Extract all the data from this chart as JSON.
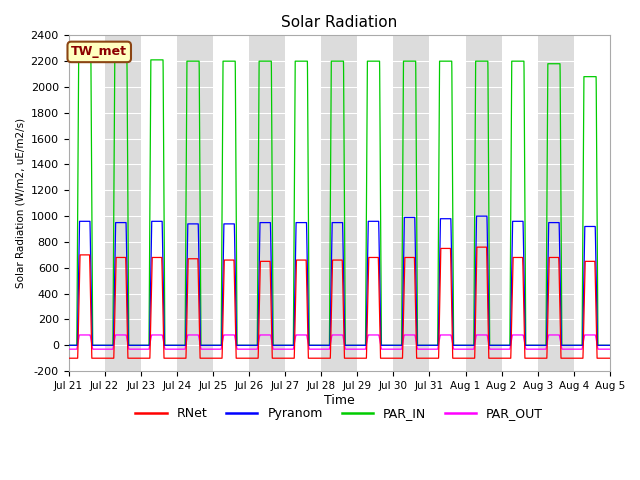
{
  "title": "Solar Radiation",
  "ylabel": "Solar Radiation (W/m2, uE/m2/s)",
  "xlabel": "Time",
  "ylim": [
    -200,
    2400
  ],
  "yticks": [
    -200,
    0,
    200,
    400,
    600,
    800,
    1000,
    1200,
    1400,
    1600,
    1800,
    2000,
    2200,
    2400
  ],
  "x_tick_labels": [
    "Jul 21",
    "Jul 22",
    "Jul 23",
    "Jul 24",
    "Jul 25",
    "Jul 26",
    "Jul 27",
    "Jul 28",
    "Jul 29",
    "Jul 30",
    "Jul 31",
    "Aug 1",
    "Aug 2",
    "Aug 3",
    "Aug 4",
    "Aug 5"
  ],
  "num_days": 15,
  "annotation_text": "TW_met",
  "annotation_facecolor": "#FFFFC0",
  "annotation_edgecolor": "#8B4513",
  "annotation_textcolor": "#8B0000",
  "colors": {
    "RNet": "#FF0000",
    "Pyranom": "#0000FF",
    "PAR_IN": "#00CC00",
    "PAR_OUT": "#FF00FF"
  },
  "bg_color": "#FFFFFF",
  "plot_bg_color": "#DCDCDC",
  "band_color": "#FFFFFF",
  "grid_color": "#FFFFFF",
  "rnet_peaks": [
    700,
    680,
    680,
    670,
    660,
    650,
    660,
    660,
    680,
    680,
    750,
    760,
    680,
    680,
    650
  ],
  "pyranom_peaks": [
    960,
    950,
    960,
    940,
    940,
    950,
    950,
    950,
    960,
    990,
    980,
    1000,
    960,
    950,
    920
  ],
  "par_in_peaks": [
    2230,
    2200,
    2210,
    2200,
    2200,
    2200,
    2200,
    2200,
    2200,
    2200,
    2200,
    2200,
    2200,
    2180,
    2080
  ],
  "par_out_peaks": [
    80,
    80,
    80,
    80,
    80,
    80,
    80,
    80,
    80,
    80,
    80,
    80,
    80,
    80,
    80
  ],
  "rnet_night": -100,
  "par_out_night": -30,
  "day_start": 0.25,
  "day_end": 0.65,
  "day_ramp": 0.04,
  "pts_per_day": 288
}
